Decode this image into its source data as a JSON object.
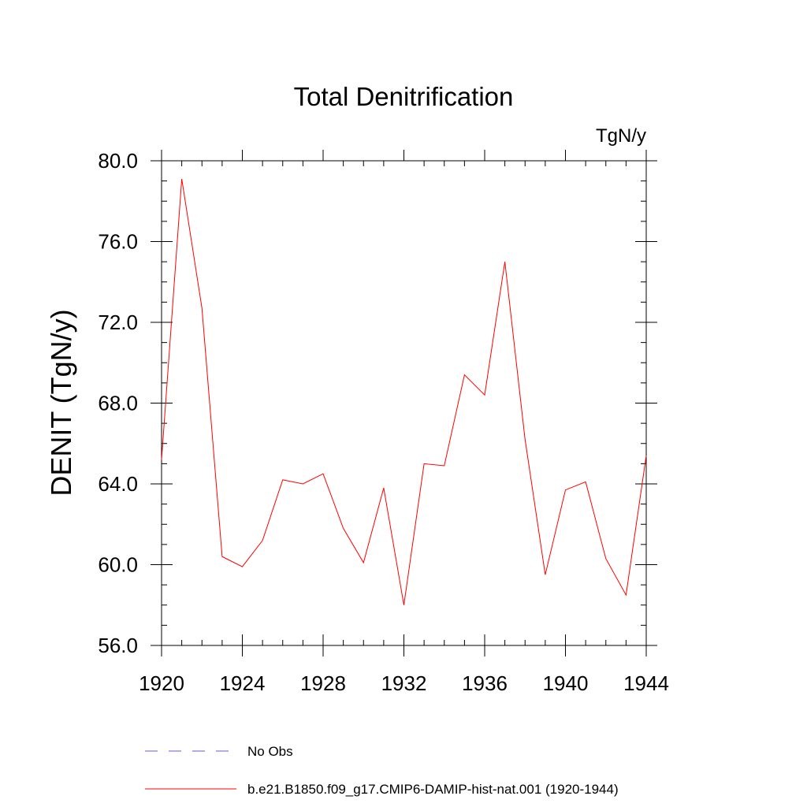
{
  "chart_data": {
    "type": "line",
    "title": "Total Denitrification",
    "units": "TgN/y",
    "xlabel": "",
    "ylabel": "DENIT  (TgN/y)",
    "xlim": [
      1920,
      1944
    ],
    "ylim": [
      56.0,
      80.0
    ],
    "x_ticks": [
      1920,
      1924,
      1928,
      1932,
      1936,
      1940,
      1944
    ],
    "x_tick_labels": [
      "1920",
      "1924",
      "1928",
      "1932",
      "1936",
      "1940",
      "1944"
    ],
    "y_ticks": [
      56.0,
      60.0,
      64.0,
      68.0,
      72.0,
      76.0,
      80.0
    ],
    "y_tick_labels": [
      "56.0",
      "60.0",
      "64.0",
      "68.0",
      "72.0",
      "76.0",
      "80.0"
    ],
    "grid": false,
    "legend_position": "bottom",
    "series": [
      {
        "name": "No Obs",
        "color": "#6a5acd",
        "style": "dashed",
        "x": [],
        "values": []
      },
      {
        "name": "b.e21.B1850.f09_g17.CMIP6-DAMIP-hist-nat.001 (1920-1944)",
        "color": "#ff0000",
        "style": "solid",
        "x": [
          1920,
          1921,
          1922,
          1923,
          1924,
          1925,
          1926,
          1927,
          1928,
          1929,
          1930,
          1931,
          1932,
          1933,
          1934,
          1935,
          1936,
          1937,
          1938,
          1939,
          1940,
          1941,
          1942,
          1943,
          1944
        ],
        "values": [
          65.2,
          79.1,
          72.7,
          60.4,
          59.9,
          61.2,
          64.2,
          64.0,
          64.5,
          61.8,
          60.1,
          63.8,
          58.0,
          65.0,
          64.9,
          69.4,
          68.4,
          75.0,
          66.2,
          59.5,
          63.7,
          64.1,
          60.3,
          58.5,
          65.4
        ]
      }
    ]
  }
}
